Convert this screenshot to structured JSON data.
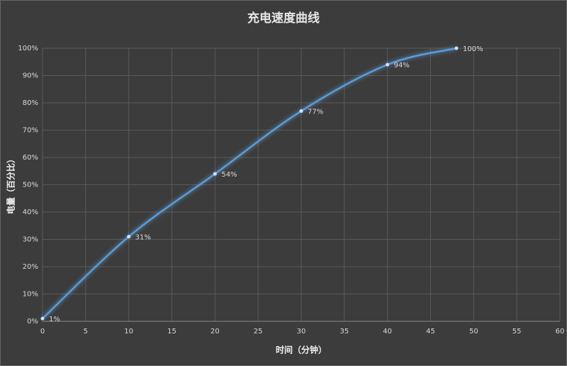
{
  "chart_data": {
    "type": "line",
    "title": "充电速度曲线",
    "x_label": "时间（分钟）",
    "y_label": "电量（百分比）",
    "x": [
      0,
      10,
      20,
      30,
      40,
      48
    ],
    "series": [
      {
        "color": "#5b9bd5",
        "values": [
          1,
          31,
          54,
          77,
          94,
          100
        ],
        "value_labels": [
          "1%",
          "31%",
          "54%",
          "77%",
          "94%",
          "100%"
        ]
      }
    ],
    "xlim": [
      0,
      60
    ],
    "xticks": [
      0,
      5,
      10,
      15,
      20,
      25,
      30,
      35,
      40,
      45,
      50,
      55,
      60
    ],
    "ylim": [
      0,
      100
    ],
    "yticks": [
      {
        "value": 0,
        "label": "0%"
      },
      {
        "value": 10,
        "label": "10%"
      },
      {
        "value": 20,
        "label": "20%"
      },
      {
        "value": 30,
        "label": "30%"
      },
      {
        "value": 40,
        "label": "40%"
      },
      {
        "value": 50,
        "label": "50%"
      },
      {
        "value": 60,
        "label": "60%"
      },
      {
        "value": 70,
        "label": "70%"
      },
      {
        "value": 80,
        "label": "80%"
      },
      {
        "value": 90,
        "label": "90%"
      },
      {
        "value": 100,
        "label": "100%"
      }
    ],
    "grid": true,
    "smooth": true
  }
}
